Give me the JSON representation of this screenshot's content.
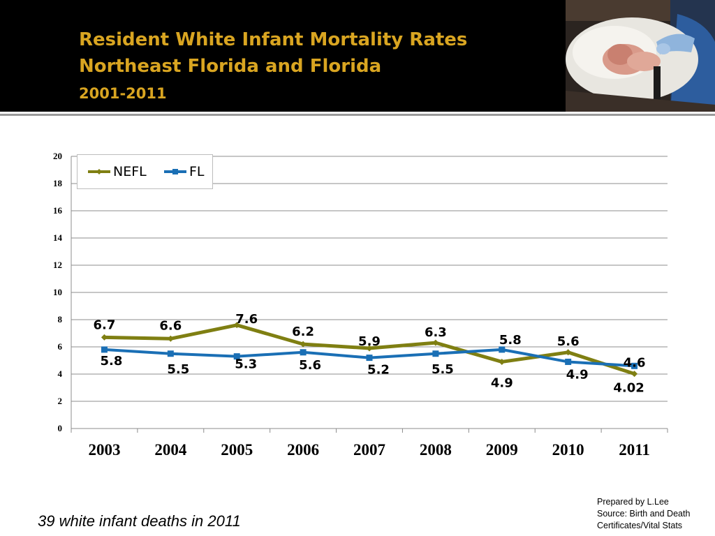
{
  "slide": {
    "title_line1": "Resident White Infant Mortality Rates",
    "title_line2": "Northeast Florida and Florida",
    "title_years": "2001-2011",
    "footnote": "39 white infant deaths in 2011",
    "credits": {
      "line1": "Prepared by L.Lee",
      "line2": "Source: Birth and Death",
      "line3": "Certificates/Vital Stats"
    },
    "photo_icon": "newborn-photo"
  },
  "colors": {
    "header_bg": "#000000",
    "title": "#d9a521",
    "nefl": "#7f7f12",
    "fl": "#1a6fb5"
  },
  "chart_data": {
    "type": "line",
    "title": "",
    "xlabel": "",
    "ylabel": "",
    "categories": [
      "2003",
      "2004",
      "2005",
      "2006",
      "2007",
      "2008",
      "2009",
      "2010",
      "2011"
    ],
    "ylim": [
      0,
      20
    ],
    "yticks": [
      0,
      2,
      4,
      6,
      8,
      10,
      12,
      14,
      16,
      18,
      20
    ],
    "grid": true,
    "legend": "top-left",
    "series": [
      {
        "name": "NEFL",
        "values": [
          6.7,
          6.6,
          7.6,
          6.2,
          5.9,
          6.3,
          4.9,
          5.6,
          4.02
        ],
        "labels": [
          "6.7",
          "6.6",
          "7.6",
          "6.2",
          "5.9",
          "6.3",
          "4.9",
          "5.6",
          "4.02"
        ]
      },
      {
        "name": "FL",
        "values": [
          5.8,
          5.5,
          5.3,
          5.6,
          5.2,
          5.5,
          5.8,
          4.9,
          4.6
        ],
        "labels": [
          "5.8",
          "5.5",
          "5.3",
          "5.6",
          "5.2",
          "5.5",
          "5.8",
          "4.9",
          "4.6"
        ]
      }
    ]
  }
}
